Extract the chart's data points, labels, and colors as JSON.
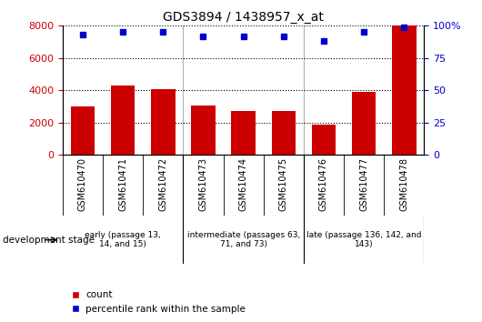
{
  "title": "GDS3894 / 1438957_x_at",
  "categories": [
    "GSM610470",
    "GSM610471",
    "GSM610472",
    "GSM610473",
    "GSM610474",
    "GSM610475",
    "GSM610476",
    "GSM610477",
    "GSM610478"
  ],
  "counts": [
    3000,
    4300,
    4050,
    3050,
    2700,
    2700,
    1850,
    3900,
    8000
  ],
  "percentile_ranks": [
    93,
    95,
    95,
    92,
    92,
    92,
    88,
    95,
    99
  ],
  "ylim_left": [
    0,
    8000
  ],
  "ylim_right": [
    0,
    100
  ],
  "yticks_left": [
    0,
    2000,
    4000,
    6000,
    8000
  ],
  "yticks_right": [
    0,
    25,
    50,
    75,
    100
  ],
  "bar_color": "#cc0000",
  "dot_color": "#0000cc",
  "xtick_bg_color": "#d0d0d0",
  "stage_color": "#90ee90",
  "stage_labels": [
    "early (passage 13,\n14, and 15)",
    "intermediate (passages 63,\n71, and 73)",
    "late (passage 136, 142, and\n143)"
  ],
  "stage_groups": [
    3,
    3,
    3
  ],
  "dev_stage_label": "development stage",
  "legend_count_label": "count",
  "legend_percentile_label": "percentile rank within the sample"
}
